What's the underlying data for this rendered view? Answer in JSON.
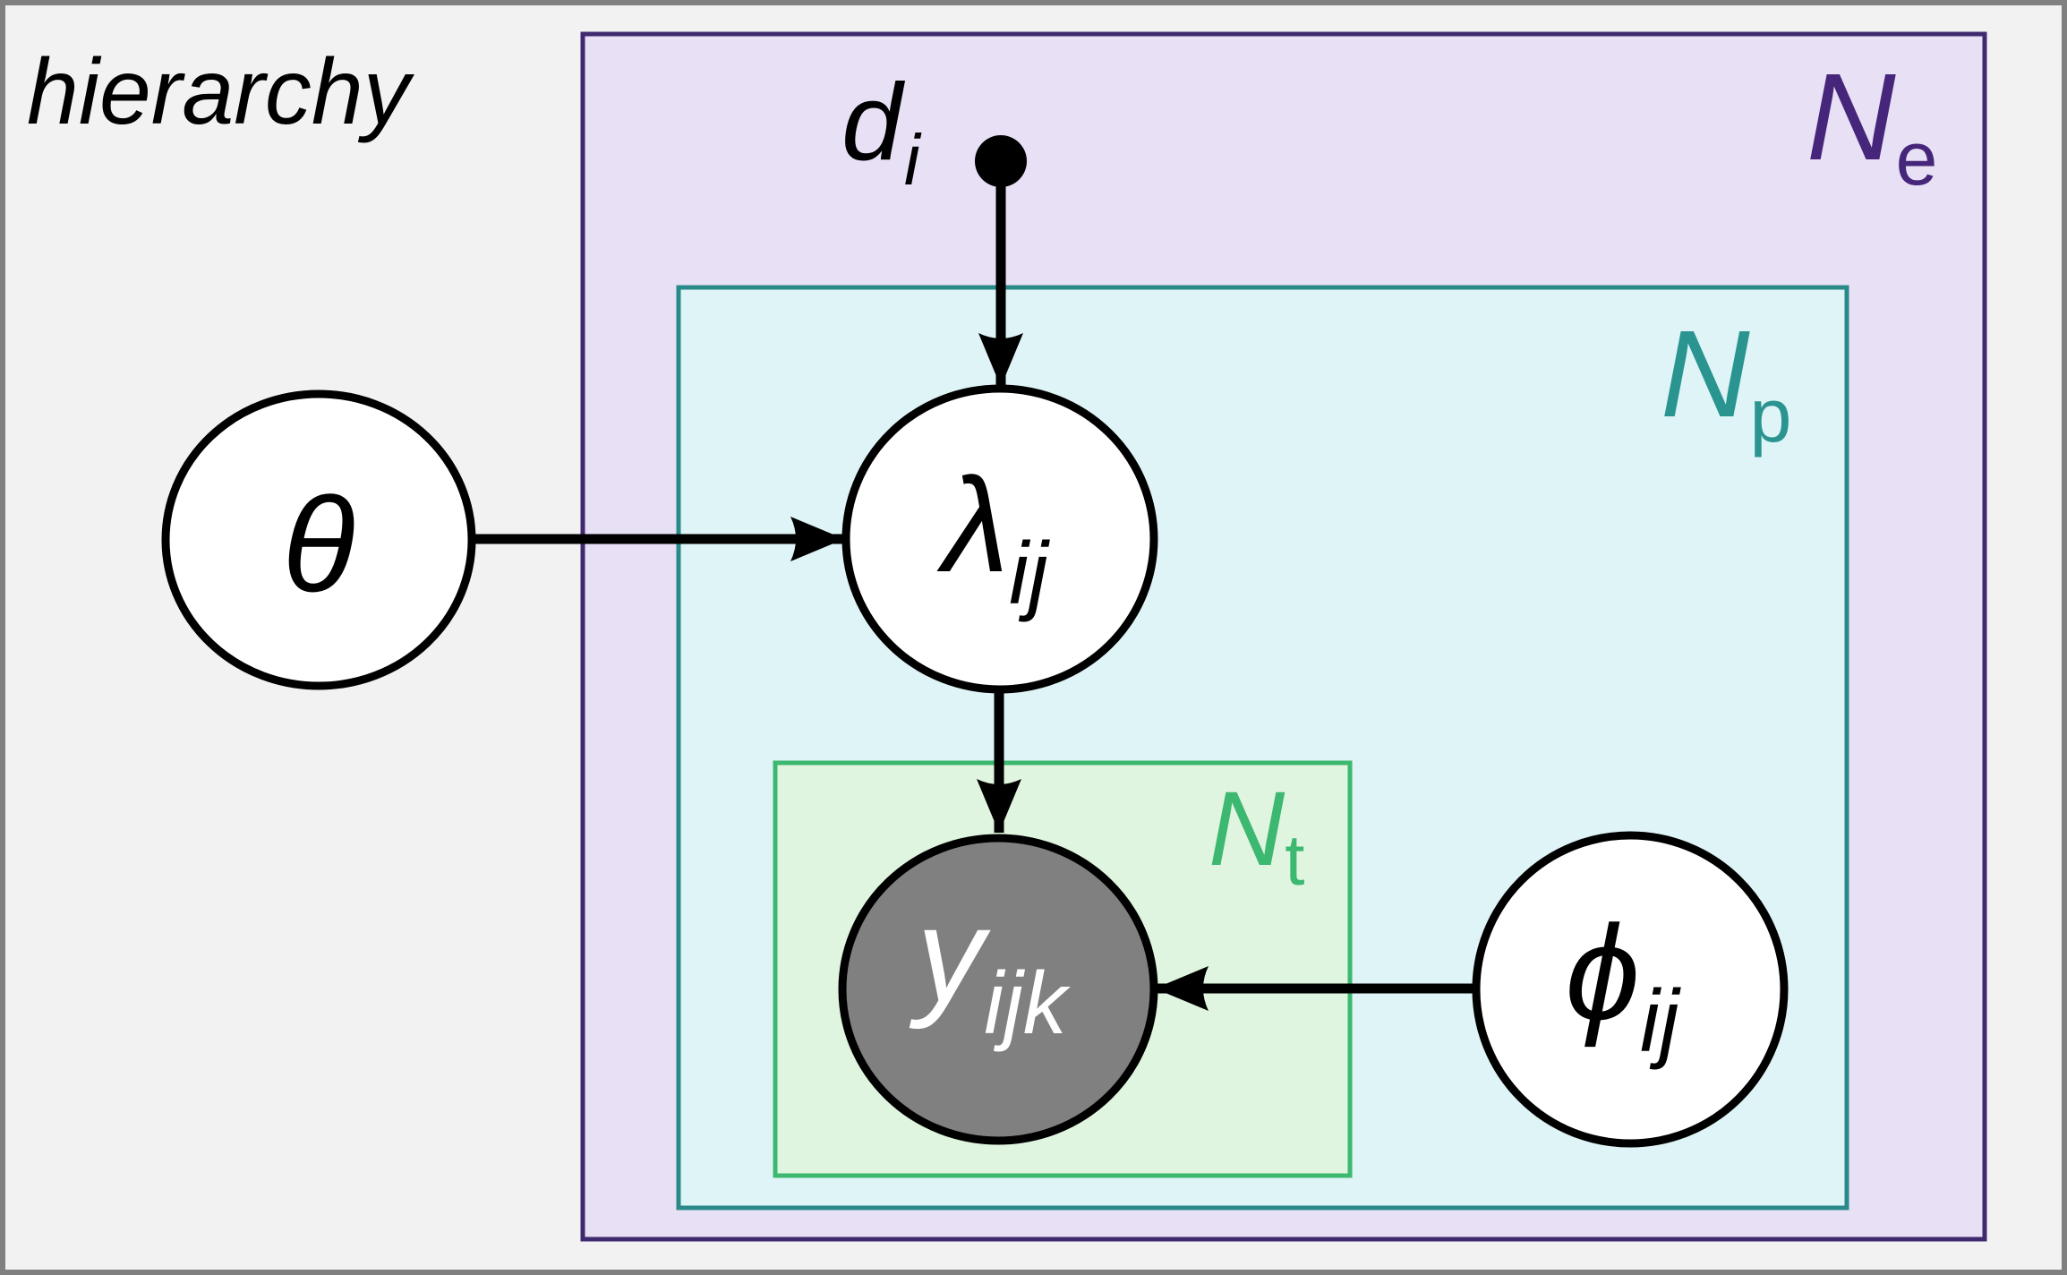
{
  "frame": {
    "title": "hierarchy",
    "background": "#f2f2f2",
    "border": "#808080"
  },
  "plates": [
    {
      "id": "plate-e",
      "label": "N",
      "subscript": "e",
      "fill": "#e8e0f4",
      "stroke": "#3f2a70",
      "label_color": "#46267a"
    },
    {
      "id": "plate-p",
      "label": "N",
      "subscript": "p",
      "fill": "#dff4f6",
      "stroke": "#2a8a8a",
      "label_color": "#2a9490"
    },
    {
      "id": "plate-t",
      "label": "N",
      "subscript": "t",
      "fill": "#e0f5e0",
      "stroke": "#3db870",
      "label_color": "#3db870"
    }
  ],
  "nodes": [
    {
      "id": "theta",
      "symbol": "θ",
      "subscript": "",
      "observed": false
    },
    {
      "id": "lambda",
      "symbol": "λ",
      "subscript": "ij",
      "observed": false
    },
    {
      "id": "y",
      "symbol": "y",
      "subscript": "ijk",
      "observed": true,
      "fill": "#808080"
    },
    {
      "id": "phi",
      "symbol": "ϕ",
      "subscript": "ij",
      "observed": false
    },
    {
      "id": "d",
      "symbol": "d",
      "subscript": "i",
      "fixed": true
    }
  ],
  "edges": [
    {
      "from": "d",
      "to": "lambda"
    },
    {
      "from": "theta",
      "to": "lambda"
    },
    {
      "from": "lambda",
      "to": "y"
    },
    {
      "from": "phi",
      "to": "y"
    }
  ]
}
